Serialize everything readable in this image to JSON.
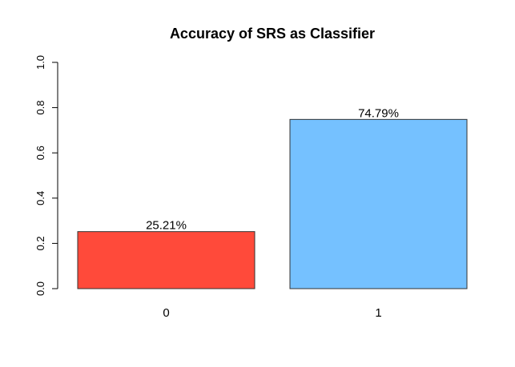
{
  "chart_data": {
    "type": "bar",
    "title": "Accuracy of SRS as Classifier",
    "xlabel": "",
    "ylabel": "",
    "categories": [
      "0",
      "1"
    ],
    "values": [
      0.2521,
      0.7479
    ],
    "data_labels": [
      "25.21%",
      "74.79%"
    ],
    "bar_colors": [
      "#ff4a3a",
      "#75c1ff"
    ],
    "ylim": [
      0,
      1.0
    ],
    "y_ticks": [
      0.0,
      0.2,
      0.4,
      0.6,
      0.8,
      1.0
    ],
    "y_tick_labels": [
      "0.0",
      "0.2",
      "0.4",
      "0.6",
      "0.8",
      "1.0"
    ],
    "grid": false,
    "legend": "none"
  }
}
